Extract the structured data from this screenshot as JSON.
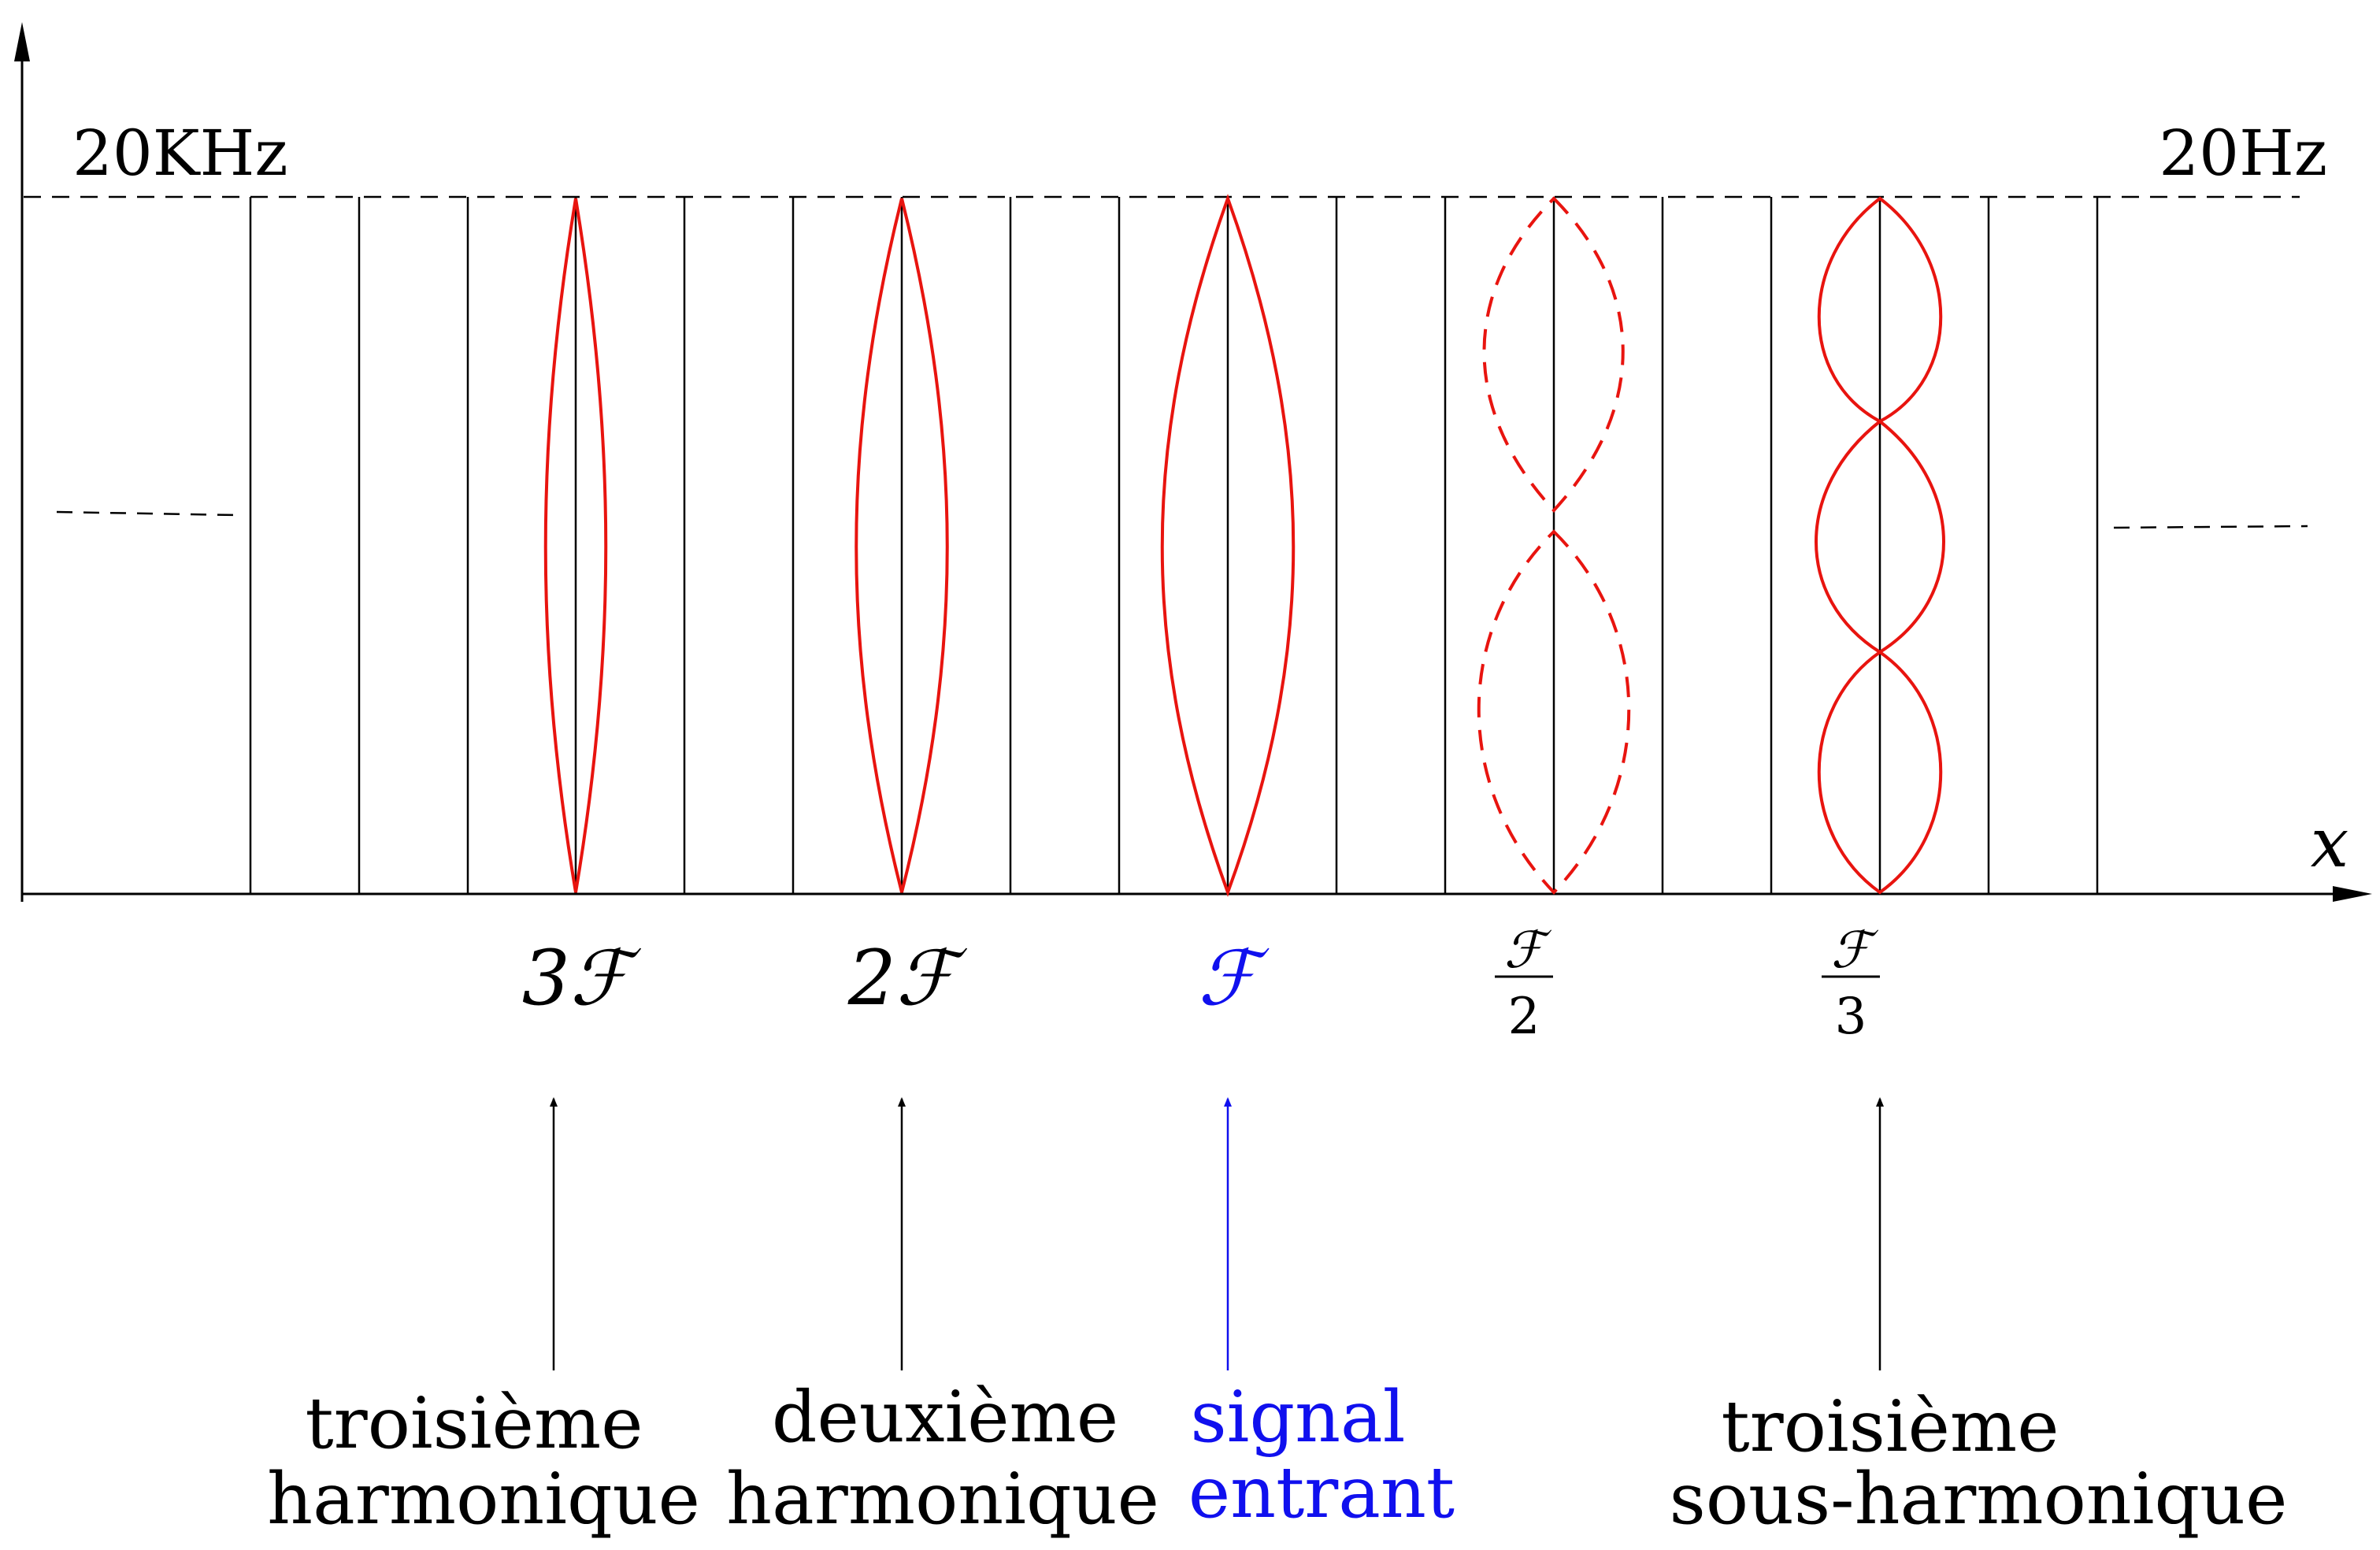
{
  "axis": {
    "x_label": "x"
  },
  "labels": {
    "top_left": "20KHz",
    "top_right": "20Hz"
  },
  "markers": {
    "third_harmonic": "3ℱ",
    "second_harmonic": "2ℱ",
    "signal": "ℱ",
    "half_numerator": "ℱ",
    "half_denominator": "2",
    "third_numerator": "ℱ",
    "third_denominator": "3"
  },
  "captions": {
    "third_harmonic": [
      "troisième",
      "harmonique"
    ],
    "second_harmonic": [
      "deuxième",
      "harmonique"
    ],
    "signal": [
      "signal",
      "entrant"
    ],
    "third_subharmonic": [
      "troisième",
      "sous-harmonique"
    ]
  },
  "colors": {
    "axis": "#000000",
    "curve": "#e8140f",
    "signal": "#1010ee"
  }
}
